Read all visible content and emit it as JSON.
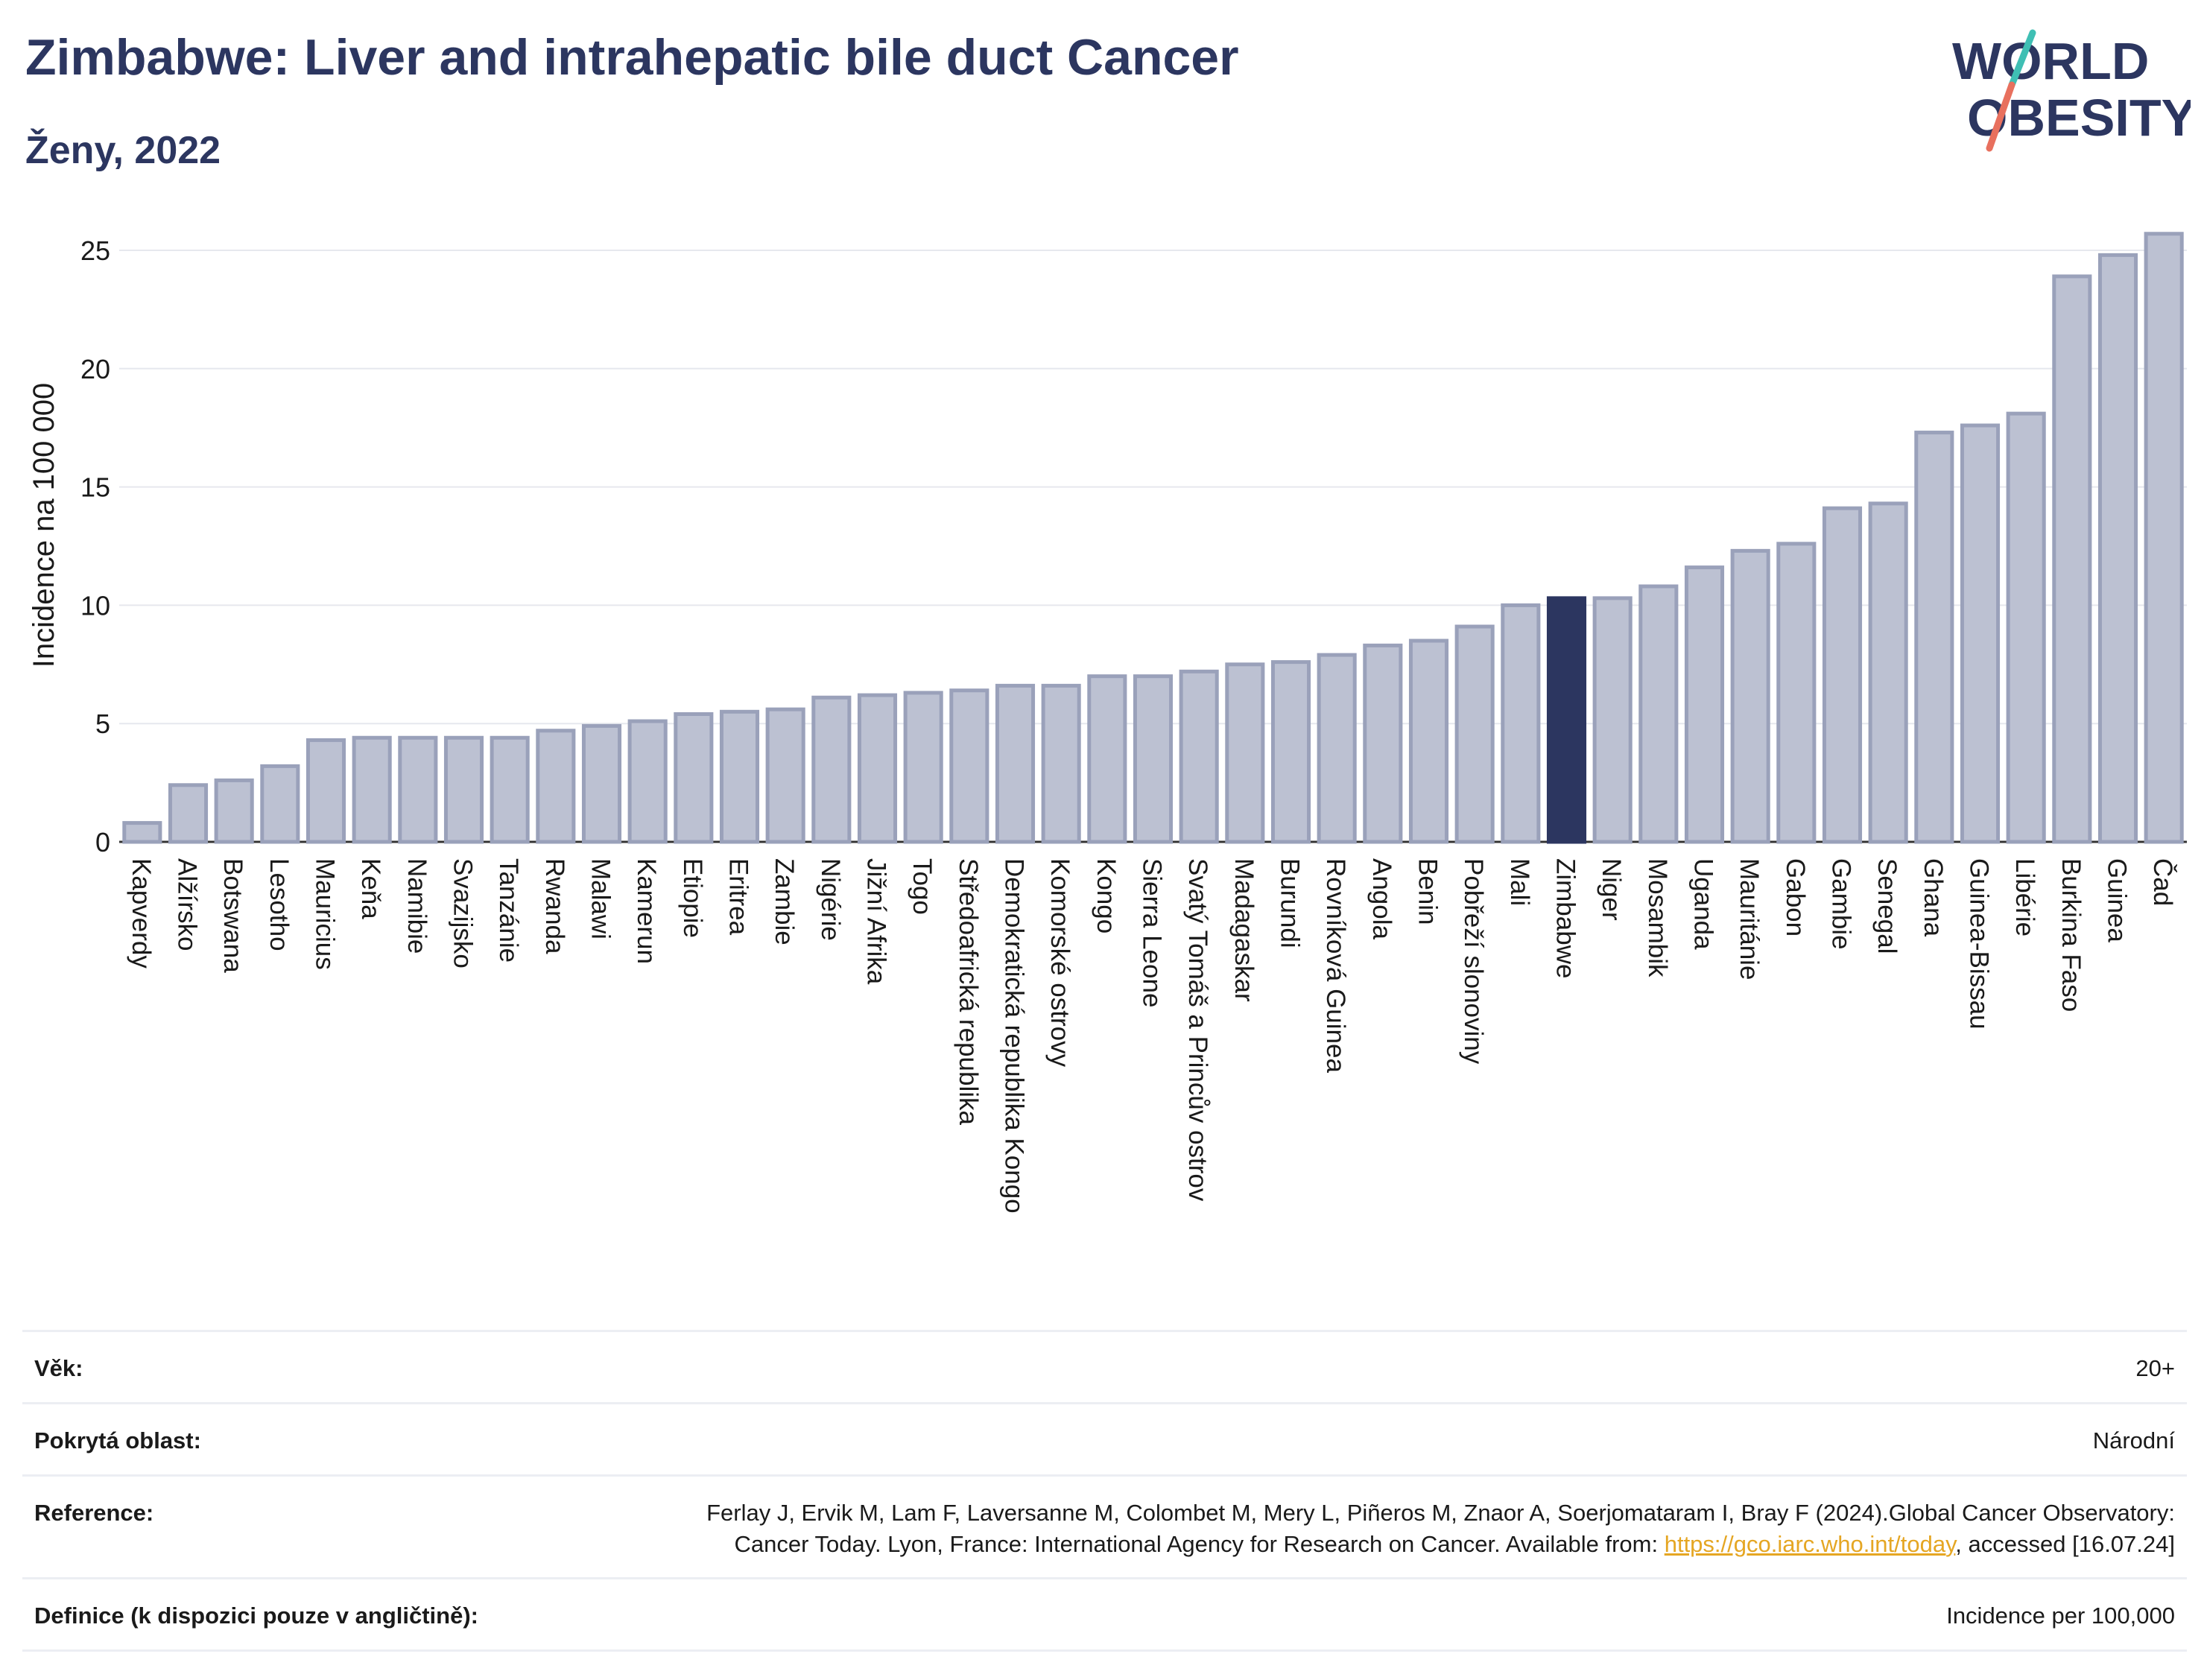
{
  "header": {
    "title": "Zimbabwe: Liver and intrahepatic bile duct Cancer",
    "subtitle": "Ženy, 2022"
  },
  "logo": {
    "line1": "WORLD",
    "line2": "OBESITY",
    "colors": {
      "text": "#2c3660",
      "slash_teal": "#3fbfb4",
      "slash_coral": "#e8705e"
    }
  },
  "colors": {
    "bar_fill": "#bcc1d2",
    "bar_stroke": "#9aa1ba",
    "highlight": "#2c3660",
    "grid": "#e6e8ee",
    "axis_text": "#1a1a1a"
  },
  "chart_data": {
    "type": "bar",
    "title": "Zimbabwe: Liver and intrahepatic bile duct Cancer",
    "ylabel": "Incidence na 100 000",
    "xlabel": "",
    "ylim": [
      0,
      26
    ],
    "yticks": [
      0,
      5,
      10,
      15,
      20,
      25
    ],
    "grid": true,
    "highlight": "Zimbabwe",
    "categories": [
      "Kapverdy",
      "Alžírsko",
      "Botswana",
      "Lesotho",
      "Mauricius",
      "Keňa",
      "Namibie",
      "Svazijsko",
      "Tanzánie",
      "Rwanda",
      "Malawi",
      "Kamerun",
      "Etiopie",
      "Eritrea",
      "Zambie",
      "Nigérie",
      "Jižní Afrika",
      "Togo",
      "Středoafrická republika",
      "Demokratická republika Kongo",
      "Komorské ostrovy",
      "Kongo",
      "Sierra Leone",
      "Svatý Tomáš a Princův ostrov",
      "Madagaskar",
      "Burundi",
      "Rovníková Guinea",
      "Angola",
      "Benin",
      "Pobřeží slonoviny",
      "Mali",
      "Zimbabwe",
      "Niger",
      "Mosambik",
      "Uganda",
      "Mauritánie",
      "Gabon",
      "Gambie",
      "Senegal",
      "Ghana",
      "Guinea-Bissau",
      "Libérie",
      "Burkina Faso",
      "Guinea",
      "Čad"
    ],
    "values": [
      0.8,
      2.4,
      2.6,
      3.2,
      4.3,
      4.4,
      4.4,
      4.4,
      4.4,
      4.7,
      4.9,
      5.1,
      5.4,
      5.5,
      5.6,
      6.1,
      6.2,
      6.3,
      6.4,
      6.6,
      6.6,
      7.0,
      7.0,
      7.2,
      7.5,
      7.6,
      7.9,
      8.3,
      8.5,
      9.1,
      10.0,
      10.3,
      10.3,
      10.8,
      11.6,
      12.3,
      12.6,
      14.1,
      14.3,
      17.3,
      17.6,
      18.1,
      23.9,
      24.8,
      25.7
    ]
  },
  "meta": {
    "rows": [
      {
        "label": "Věk:",
        "value": "20+"
      },
      {
        "label": "Pokrytá oblast:",
        "value": "Národní"
      },
      {
        "label": "Reference:",
        "value_pre": "Ferlay J, Ervik M, Lam F, Laversanne M, Colombet M, Mery L, Piñeros M, Znaor A, Soerjomataram I, Bray F (2024).Global Cancer Observatory: Cancer Today. Lyon, France: International Agency for Research on Cancer. Available from: ",
        "link": "https://gco.iarc.who.int/today",
        "value_post": ", accessed [16.07.24]"
      },
      {
        "label": "Definice (k dispozici pouze v angličtině):",
        "value": "Incidence per 100,000"
      }
    ]
  }
}
